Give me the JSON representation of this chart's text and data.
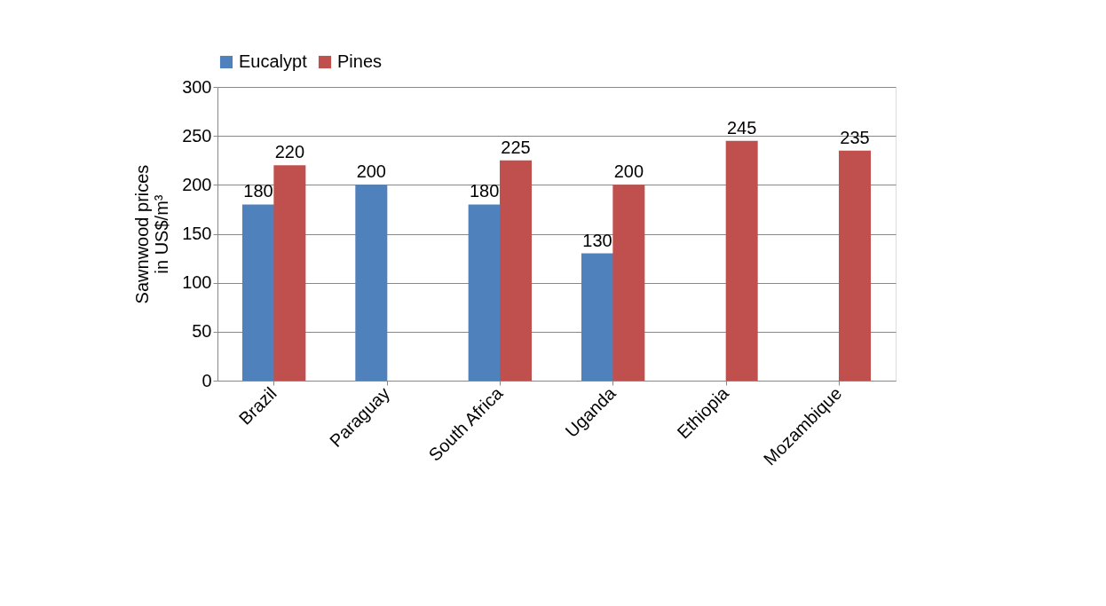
{
  "chart_data": {
    "type": "bar",
    "ylabel": "Sawnwood prices\nin US$/m³",
    "categories": [
      "Brazil",
      "Paraguay",
      "South Africa",
      "Uganda",
      "Ethiopia",
      "Mozambique"
    ],
    "series": [
      {
        "name": "Eucalypt",
        "color": "#4f81bd",
        "values": [
          180,
          200,
          180,
          130,
          null,
          null
        ]
      },
      {
        "name": "Pines",
        "color": "#c0504d",
        "values": [
          220,
          null,
          225,
          200,
          245,
          235
        ]
      }
    ],
    "ylim": [
      0,
      300
    ],
    "yticks": [
      0,
      50,
      100,
      150,
      200,
      250,
      300
    ],
    "grid": "y",
    "legend": "top",
    "data_labels": true
  }
}
